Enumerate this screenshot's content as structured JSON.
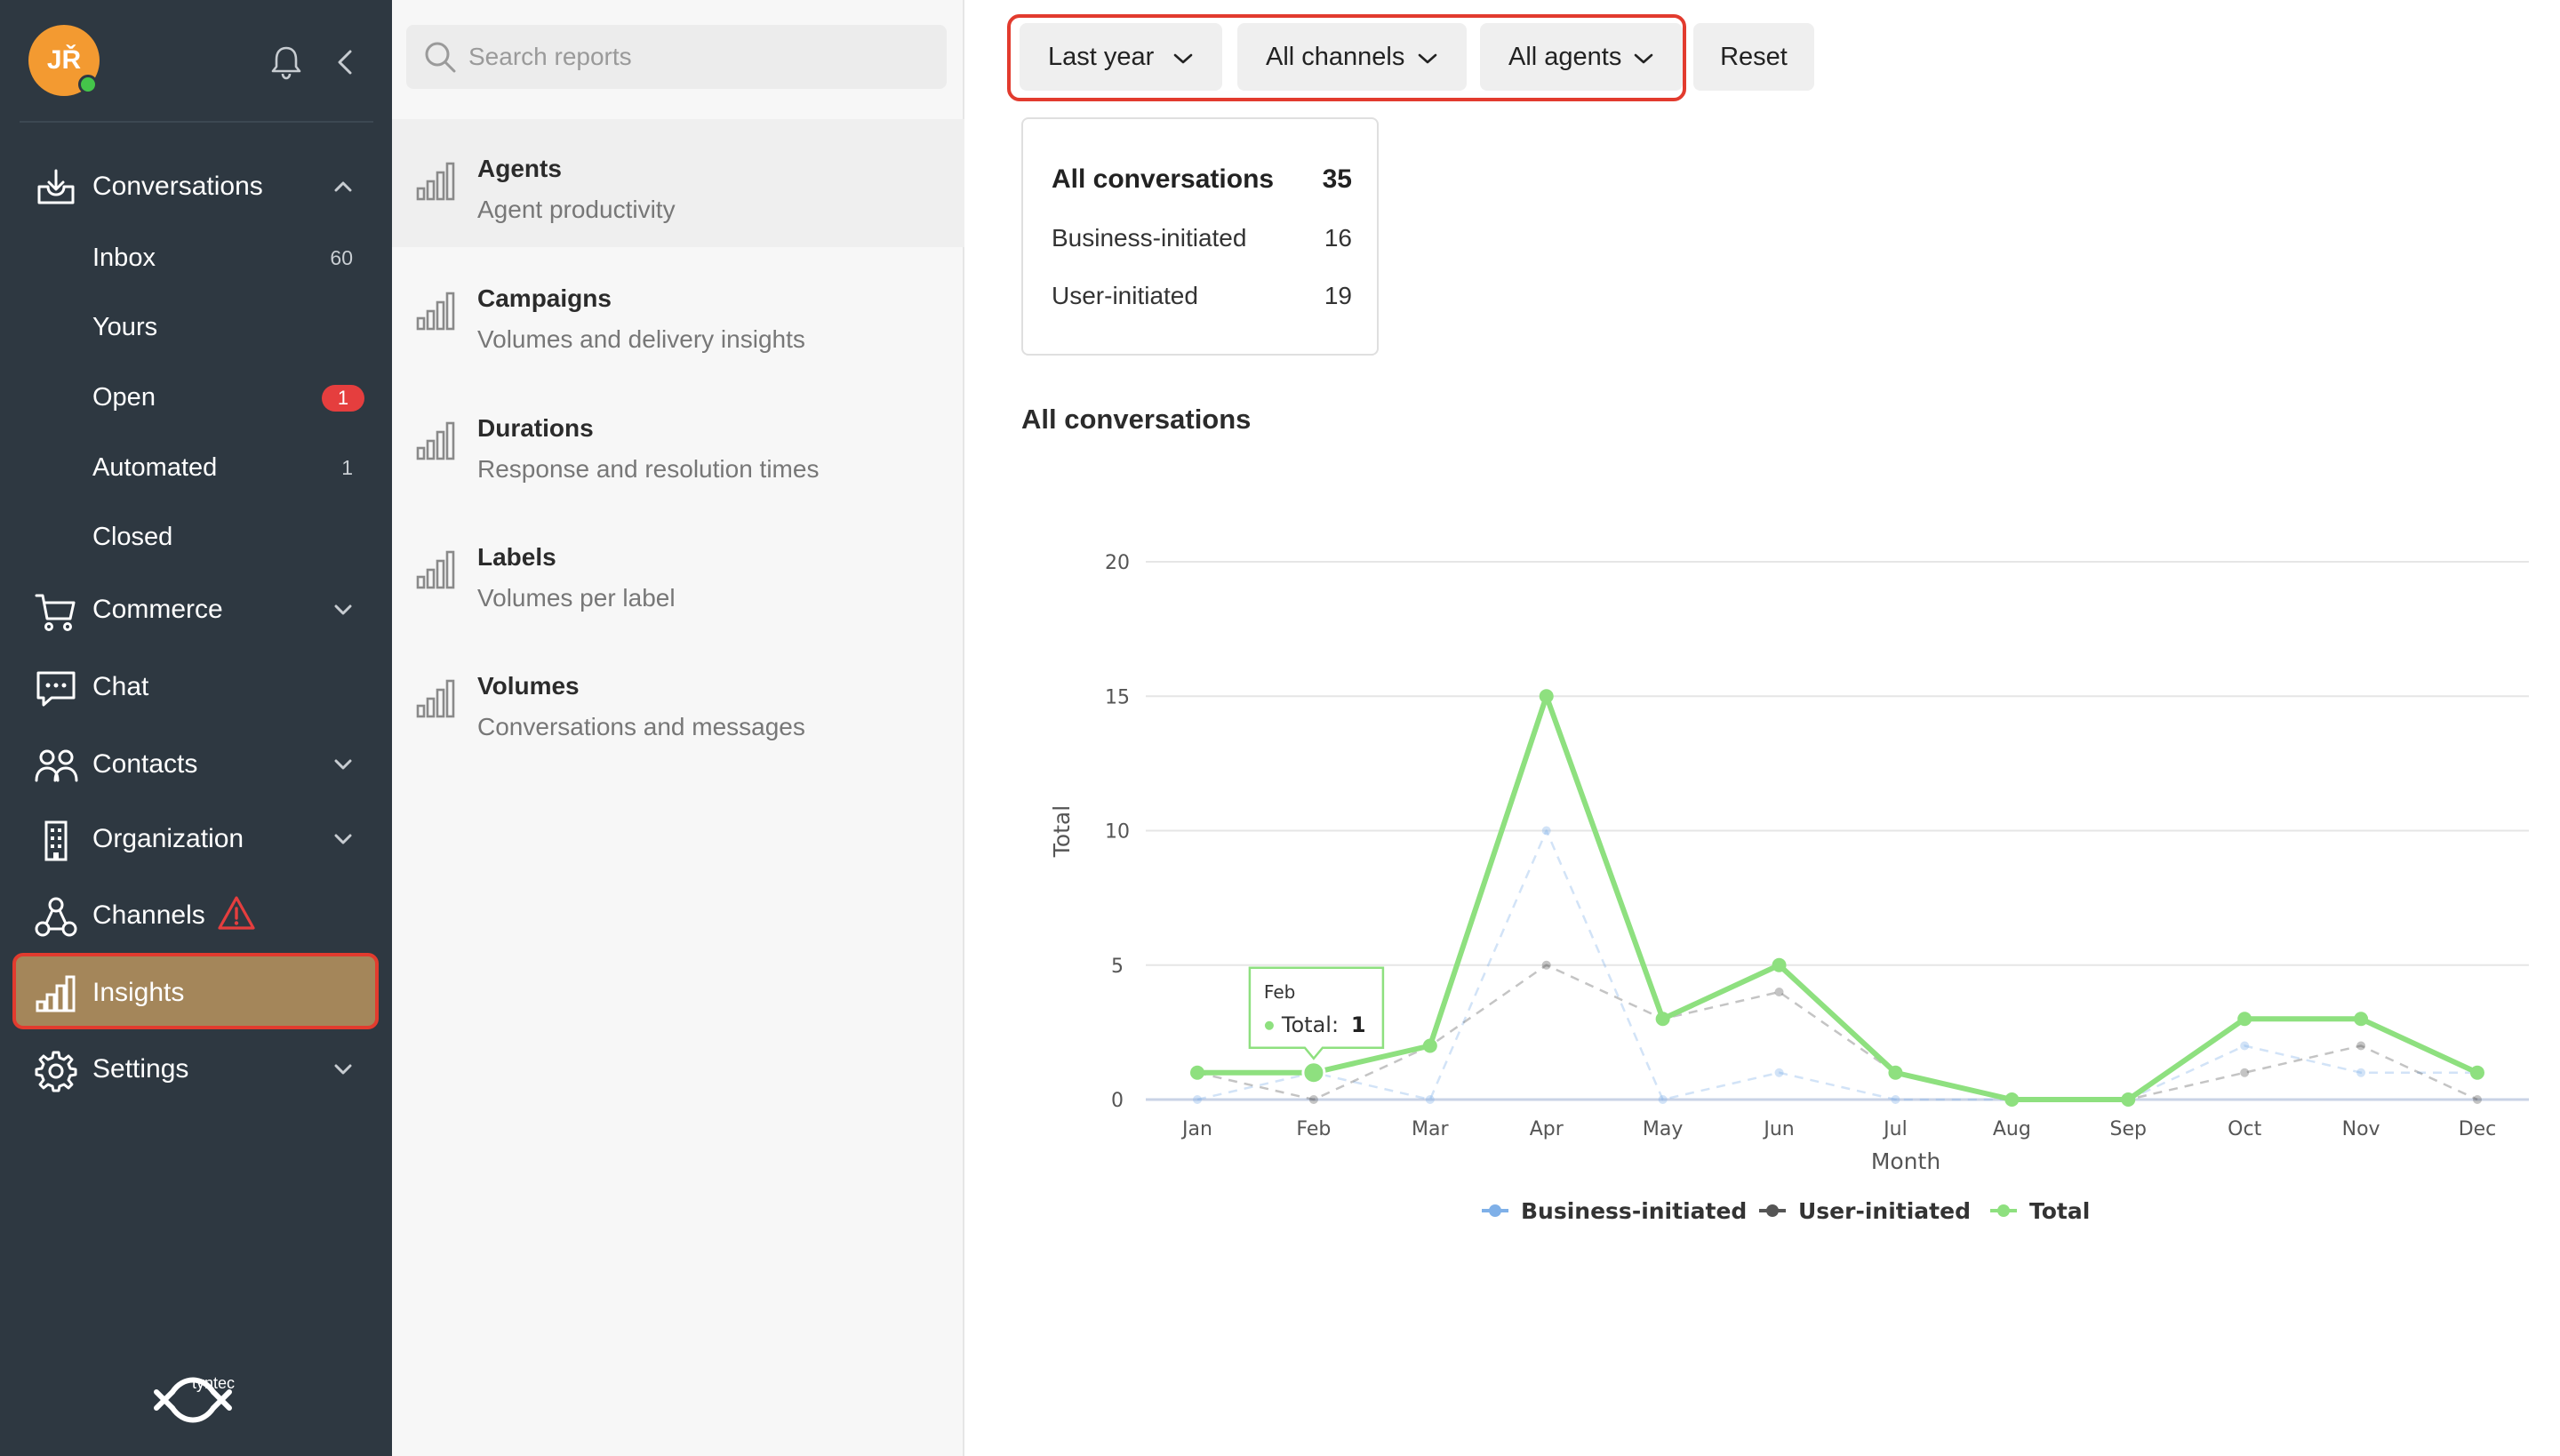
{
  "sidebar": {
    "avatar_initials": "JŘ",
    "brand": "tyntec",
    "nav": {
      "conversations": "Conversations",
      "commerce": "Commerce",
      "chat": "Chat",
      "contacts": "Contacts",
      "organization": "Organization",
      "channels": "Channels",
      "insights": "Insights",
      "settings": "Settings"
    },
    "conversations_sub": [
      {
        "label": "Inbox",
        "count": "60"
      },
      {
        "label": "Yours",
        "count": ""
      },
      {
        "label": "Open",
        "badge": "1"
      },
      {
        "label": "Automated",
        "count": "1"
      },
      {
        "label": "Closed",
        "count": ""
      }
    ],
    "colors": {
      "background": "#2e3841",
      "active": "#a4865a",
      "highlight": "#e23b2e",
      "badge": "#e53e3e",
      "avatar": "#f39a31"
    }
  },
  "reports": {
    "search_placeholder": "Search reports",
    "items": [
      {
        "title": "Agents",
        "subtitle": "Agent productivity"
      },
      {
        "title": "Campaigns",
        "subtitle": "Volumes and delivery insights"
      },
      {
        "title": "Durations",
        "subtitle": "Response and resolution times"
      },
      {
        "title": "Labels",
        "subtitle": "Volumes per label"
      },
      {
        "title": "Volumes",
        "subtitle": "Conversations and messages"
      }
    ]
  },
  "filters": {
    "period": "Last year",
    "channels": "All channels",
    "agents": "All agents",
    "reset": "Reset"
  },
  "summary": {
    "rows": [
      {
        "label": "All conversations",
        "value": "35"
      },
      {
        "label": "Business-initiated",
        "value": "16"
      },
      {
        "label": "User-initiated",
        "value": "19"
      }
    ]
  },
  "chart_title": "All conversations",
  "chart_data": {
    "type": "line",
    "title": "All conversations",
    "xlabel": "Month",
    "ylabel": "Total",
    "categories": [
      "Jan",
      "Feb",
      "Mar",
      "Apr",
      "May",
      "Jun",
      "Jul",
      "Aug",
      "Sep",
      "Oct",
      "Nov",
      "Dec"
    ],
    "ylim": [
      0,
      20
    ],
    "yticks": [
      0,
      5,
      10,
      15,
      20
    ],
    "grid": true,
    "legend": "bottom",
    "series": [
      {
        "name": "Business-initiated",
        "color": "#7fb0e8",
        "values": [
          0,
          1,
          0,
          10,
          0,
          1,
          0,
          0,
          0,
          2,
          1,
          1
        ]
      },
      {
        "name": "User-initiated",
        "color": "#555555",
        "values": [
          1,
          0,
          2,
          5,
          3,
          4,
          1,
          0,
          0,
          1,
          2,
          0
        ]
      },
      {
        "name": "Total",
        "color": "#8ee07f",
        "values": [
          1,
          1,
          2,
          15,
          3,
          5,
          1,
          0,
          0,
          3,
          3,
          1
        ]
      }
    ],
    "tooltip": {
      "category": "Feb",
      "series": "Total",
      "label": "Total:",
      "value": "1"
    }
  }
}
